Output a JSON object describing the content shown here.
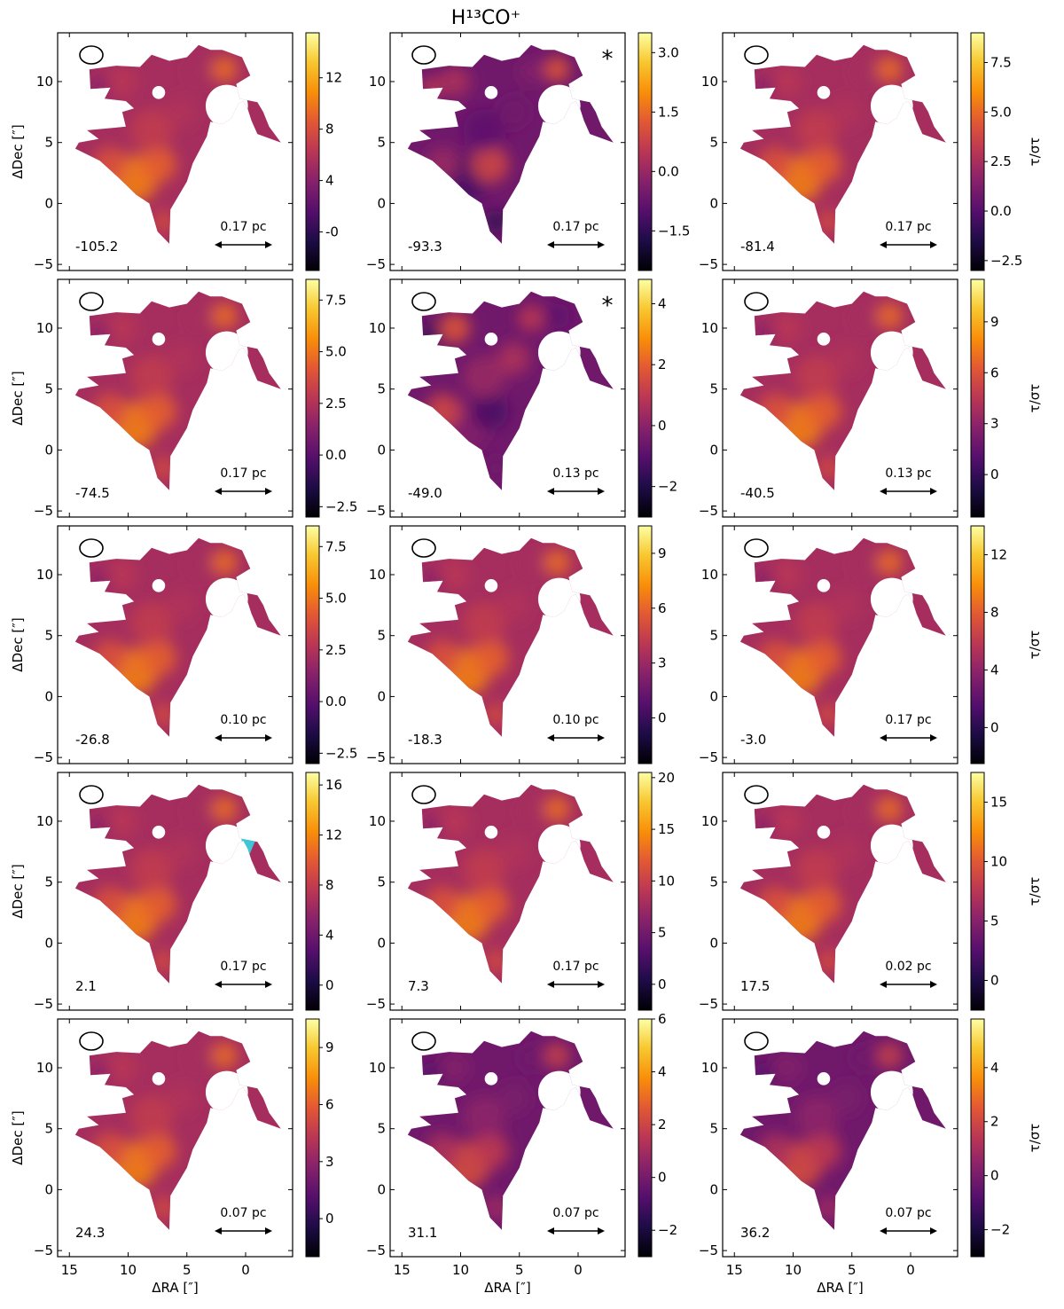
{
  "figure": {
    "title": "H¹³CO⁺"
  },
  "chart_data": {
    "type": "heatmap",
    "title": "H¹³CO⁺",
    "xlabel": "ΔRA [″]",
    "ylabel": "ΔDec [″]",
    "colorbar_label": "τ/στ",
    "colormap": "inferno",
    "xlim": [
      16,
      -4
    ],
    "ylim": [
      -5.5,
      14
    ],
    "x_ticks": [
      15,
      10,
      5,
      0
    ],
    "y_ticks": [
      -5,
      0,
      5,
      10
    ],
    "grid": false,
    "panels": [
      {
        "velocity": "-105.2",
        "scale_label": "0.17 pc",
        "star": false,
        "cbar_min": -3,
        "cbar_max": 15.5,
        "cbar_ticks": [
          "-0",
          "4",
          "8",
          "12"
        ]
      },
      {
        "velocity": "-93.3",
        "scale_label": "0.17 pc",
        "star": true,
        "cbar_min": -2.5,
        "cbar_max": 3.5,
        "cbar_ticks": [
          "−1.5",
          "0.0",
          "1.5",
          "3.0"
        ]
      },
      {
        "velocity": "-81.4",
        "scale_label": "0.17 pc",
        "star": false,
        "cbar_min": -3,
        "cbar_max": 9,
        "cbar_ticks": [
          "−2.5",
          "0.0",
          "2.5",
          "5.0",
          "7.5"
        ]
      },
      {
        "velocity": "-74.5",
        "scale_label": "0.17 pc",
        "star": false,
        "cbar_min": -3,
        "cbar_max": 8.5,
        "cbar_ticks": [
          "−2.5",
          "0.0",
          "2.5",
          "5.0",
          "7.5"
        ]
      },
      {
        "velocity": "-49.0",
        "scale_label": "0.13 pc",
        "star": true,
        "cbar_min": -3,
        "cbar_max": 4.8,
        "cbar_ticks": [
          "−2",
          "0",
          "2",
          "4"
        ]
      },
      {
        "velocity": "-40.5",
        "scale_label": "0.13 pc",
        "star": false,
        "cbar_min": -2.5,
        "cbar_max": 11.5,
        "cbar_ticks": [
          "0",
          "3",
          "6",
          "9"
        ]
      },
      {
        "velocity": "-26.8",
        "scale_label": "0.10 pc",
        "star": false,
        "cbar_min": -3,
        "cbar_max": 8.5,
        "cbar_ticks": [
          "−2.5",
          "0.0",
          "2.5",
          "5.0",
          "7.5"
        ]
      },
      {
        "velocity": "-18.3",
        "scale_label": "0.10 pc",
        "star": false,
        "cbar_min": -2.5,
        "cbar_max": 10.5,
        "cbar_ticks": [
          "0",
          "3",
          "6",
          "9"
        ]
      },
      {
        "velocity": "-3.0",
        "scale_label": "0.17 pc",
        "star": false,
        "cbar_min": -2.5,
        "cbar_max": 14,
        "cbar_ticks": [
          "0",
          "4",
          "8",
          "12"
        ]
      },
      {
        "velocity": "2.1",
        "scale_label": "0.17 pc",
        "star": false,
        "cbar_min": -2,
        "cbar_max": 17,
        "cbar_ticks": [
          "0",
          "4",
          "8",
          "12",
          "16"
        ],
        "cyan_patch": true
      },
      {
        "velocity": "7.3",
        "scale_label": "0.17 pc",
        "star": false,
        "cbar_min": -2.5,
        "cbar_max": 20.5,
        "cbar_ticks": [
          "0",
          "5",
          "10",
          "15",
          "20"
        ]
      },
      {
        "velocity": "17.5",
        "scale_label": "0.02 pc",
        "star": false,
        "cbar_min": -2.5,
        "cbar_max": 17.5,
        "cbar_ticks": [
          "0",
          "5",
          "10",
          "15"
        ]
      },
      {
        "velocity": "24.3",
        "scale_label": "0.07 pc",
        "star": false,
        "cbar_min": -2,
        "cbar_max": 10.5,
        "cbar_ticks": [
          "0",
          "3",
          "6",
          "9"
        ]
      },
      {
        "velocity": "31.1",
        "scale_label": "0.07 pc",
        "star": false,
        "cbar_min": -3,
        "cbar_max": 6,
        "cbar_ticks": [
          "−2",
          "0",
          "2",
          "4",
          "6"
        ]
      },
      {
        "velocity": "36.2",
        "scale_label": "0.07 pc",
        "star": false,
        "cbar_min": -3,
        "cbar_max": 5.8,
        "cbar_ticks": [
          "−2",
          "0",
          "2",
          "4"
        ]
      }
    ]
  }
}
